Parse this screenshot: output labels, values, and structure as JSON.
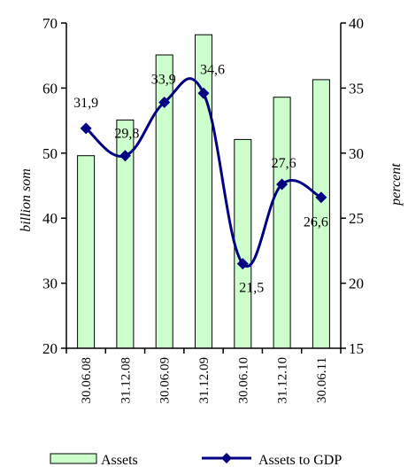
{
  "chart_data": {
    "type": "bar",
    "title": "",
    "categories": [
      "30.06.08",
      "31.12.08",
      "30.06.09",
      "31.12.09",
      "30.06.10",
      "31.12.10",
      "30.06.11"
    ],
    "series": [
      {
        "name": "Assets",
        "type": "bar",
        "axis": "left",
        "color": "#ccffcc",
        "stroke": "#000000",
        "values": [
          49.6,
          55.1,
          65.1,
          68.2,
          52.1,
          58.6,
          61.3
        ]
      },
      {
        "name": "Assets to GDP",
        "type": "line",
        "axis": "right",
        "color": "#000080",
        "marker": "diamond",
        "smooth": true,
        "values": [
          31.9,
          29.8,
          33.9,
          34.6,
          21.5,
          27.6,
          26.6
        ],
        "labels": [
          "31,9",
          "29,8",
          "33,9",
          "34,6",
          "21,5",
          "27,6",
          "26,6"
        ]
      }
    ],
    "y_left": {
      "label": "billion som",
      "range": [
        20,
        70
      ],
      "ticks": [
        "20",
        "30",
        "40",
        "50",
        "60",
        "70"
      ]
    },
    "y_right": {
      "label": "percent",
      "range": [
        15,
        40
      ],
      "ticks": [
        "15",
        "20",
        "25",
        "30",
        "35",
        "40"
      ]
    },
    "xlabel": "",
    "grid": false,
    "legend_position": "bottom"
  }
}
